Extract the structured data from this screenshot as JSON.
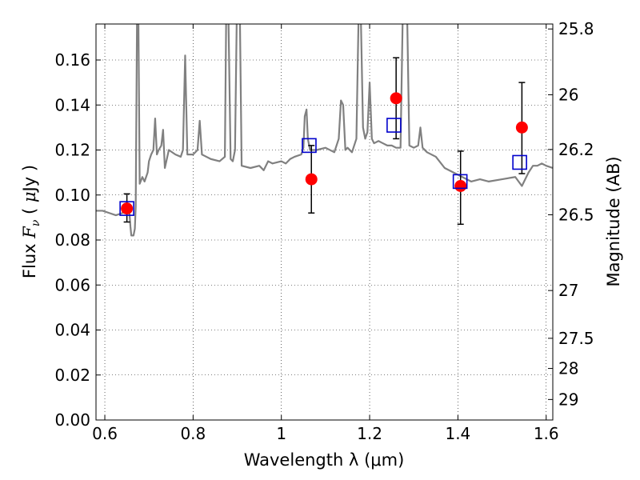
{
  "chart_data": {
    "type": "scatter",
    "title": "",
    "xlabel": "Wavelength  λ (μm)",
    "ylabel": "Flux  F_ν  ( μJy )",
    "ylabel_parts": {
      "prefix": "Flux ",
      "symbol": "F",
      "subscript": "ν",
      "mid": " ( ",
      "mu": "μ",
      "suffix": "Jy )"
    },
    "y2label": "Magnitude (AB)",
    "xlim": [
      0.58,
      1.615
    ],
    "ylim": [
      0.0,
      0.176
    ],
    "grid": true,
    "x_ticks": [
      0.6,
      0.8,
      1.0,
      1.2,
      1.4,
      1.6
    ],
    "x_tick_labels": [
      "0.6",
      "0.8",
      "1",
      "1.2",
      "1.4",
      "1.6"
    ],
    "y_ticks": [
      0.0,
      0.02,
      0.04,
      0.06,
      0.08,
      0.1,
      0.12,
      0.14,
      0.16
    ],
    "y_tick_labels": [
      "0.00",
      "0.02",
      "0.04",
      "0.06",
      "0.08",
      "0.10",
      "0.12",
      "0.14",
      "0.16"
    ],
    "y2_ticks": [
      {
        "label": "25.8",
        "mag": 25.8
      },
      {
        "label": "26",
        "mag": 26.0
      },
      {
        "label": "26.2",
        "mag": 26.2
      },
      {
        "label": "26.5",
        "mag": 26.5
      },
      {
        "label": "27",
        "mag": 27.0
      },
      {
        "label": "27.5",
        "mag": 27.5
      },
      {
        "label": "28",
        "mag": 28.0
      },
      {
        "label": "29",
        "mag": 29.0
      }
    ],
    "series": [
      {
        "kind": "line",
        "color": "#808080",
        "points": [
          [
            0.58,
            0.093
          ],
          [
            0.595,
            0.093
          ],
          [
            0.61,
            0.092
          ],
          [
            0.625,
            0.091
          ],
          [
            0.64,
            0.092
          ],
          [
            0.65,
            0.094
          ],
          [
            0.655,
            0.094
          ],
          [
            0.658,
            0.086
          ],
          [
            0.66,
            0.082
          ],
          [
            0.665,
            0.082
          ],
          [
            0.668,
            0.085
          ],
          [
            0.67,
            0.095
          ],
          [
            0.673,
            0.18
          ],
          [
            0.676,
            0.18
          ],
          [
            0.679,
            0.105
          ],
          [
            0.685,
            0.108
          ],
          [
            0.69,
            0.106
          ],
          [
            0.697,
            0.11
          ],
          [
            0.7,
            0.115
          ],
          [
            0.705,
            0.118
          ],
          [
            0.71,
            0.12
          ],
          [
            0.714,
            0.134
          ],
          [
            0.718,
            0.118
          ],
          [
            0.722,
            0.12
          ],
          [
            0.728,
            0.122
          ],
          [
            0.732,
            0.129
          ],
          [
            0.736,
            0.112
          ],
          [
            0.745,
            0.12
          ],
          [
            0.76,
            0.118
          ],
          [
            0.772,
            0.117
          ],
          [
            0.777,
            0.12
          ],
          [
            0.782,
            0.162
          ],
          [
            0.787,
            0.118
          ],
          [
            0.8,
            0.118
          ],
          [
            0.81,
            0.12
          ],
          [
            0.815,
            0.133
          ],
          [
            0.82,
            0.118
          ],
          [
            0.84,
            0.116
          ],
          [
            0.86,
            0.115
          ],
          [
            0.872,
            0.117
          ],
          [
            0.875,
            0.18
          ],
          [
            0.88,
            0.18
          ],
          [
            0.885,
            0.116
          ],
          [
            0.89,
            0.115
          ],
          [
            0.895,
            0.12
          ],
          [
            0.899,
            0.18
          ],
          [
            0.906,
            0.18
          ],
          [
            0.91,
            0.113
          ],
          [
            0.93,
            0.112
          ],
          [
            0.95,
            0.113
          ],
          [
            0.96,
            0.111
          ],
          [
            0.97,
            0.115
          ],
          [
            0.98,
            0.114
          ],
          [
            1.0,
            0.115
          ],
          [
            1.01,
            0.114
          ],
          [
            1.02,
            0.116
          ],
          [
            1.03,
            0.117
          ],
          [
            1.045,
            0.118
          ],
          [
            1.05,
            0.121
          ],
          [
            1.053,
            0.135
          ],
          [
            1.057,
            0.138
          ],
          [
            1.06,
            0.125
          ],
          [
            1.065,
            0.12
          ],
          [
            1.08,
            0.12
          ],
          [
            1.1,
            0.121
          ],
          [
            1.12,
            0.119
          ],
          [
            1.13,
            0.125
          ],
          [
            1.135,
            0.142
          ],
          [
            1.14,
            0.14
          ],
          [
            1.145,
            0.12
          ],
          [
            1.15,
            0.121
          ],
          [
            1.16,
            0.119
          ],
          [
            1.17,
            0.125
          ],
          [
            1.175,
            0.18
          ],
          [
            1.18,
            0.18
          ],
          [
            1.185,
            0.13
          ],
          [
            1.19,
            0.125
          ],
          [
            1.195,
            0.128
          ],
          [
            1.2,
            0.15
          ],
          [
            1.205,
            0.125
          ],
          [
            1.21,
            0.123
          ],
          [
            1.22,
            0.124
          ],
          [
            1.23,
            0.123
          ],
          [
            1.24,
            0.122
          ],
          [
            1.25,
            0.122
          ],
          [
            1.26,
            0.121
          ],
          [
            1.27,
            0.121
          ],
          [
            1.275,
            0.18
          ],
          [
            1.285,
            0.18
          ],
          [
            1.29,
            0.122
          ],
          [
            1.3,
            0.121
          ],
          [
            1.31,
            0.122
          ],
          [
            1.315,
            0.13
          ],
          [
            1.32,
            0.121
          ],
          [
            1.33,
            0.119
          ],
          [
            1.35,
            0.117
          ],
          [
            1.37,
            0.112
          ],
          [
            1.39,
            0.11
          ],
          [
            1.41,
            0.108
          ],
          [
            1.43,
            0.106
          ],
          [
            1.45,
            0.107
          ],
          [
            1.47,
            0.106
          ],
          [
            1.5,
            0.107
          ],
          [
            1.53,
            0.108
          ],
          [
            1.545,
            0.104
          ],
          [
            1.55,
            0.106
          ],
          [
            1.56,
            0.11
          ],
          [
            1.57,
            0.113
          ],
          [
            1.58,
            0.113
          ],
          [
            1.59,
            0.114
          ],
          [
            1.6,
            0.113
          ],
          [
            1.615,
            0.112
          ]
        ]
      },
      {
        "kind": "errorbar",
        "color": "#ff0000",
        "points": [
          {
            "x": 0.65,
            "y": 0.094,
            "yerr_low": 0.088,
            "yerr_high": 0.1005
          },
          {
            "x": 1.068,
            "y": 0.107,
            "yerr_low": 0.092,
            "yerr_high": 0.122
          },
          {
            "x": 1.26,
            "y": 0.143,
            "yerr_low": 0.125,
            "yerr_high": 0.161
          },
          {
            "x": 1.406,
            "y": 0.104,
            "yerr_low": 0.087,
            "yerr_high": 0.1195
          },
          {
            "x": 1.545,
            "y": 0.13,
            "yerr_low": 0.1095,
            "yerr_high": 0.15
          }
        ]
      },
      {
        "kind": "square",
        "color": "#0000cc",
        "points": [
          {
            "x": 0.65,
            "y": 0.094
          },
          {
            "x": 1.063,
            "y": 0.122
          },
          {
            "x": 1.255,
            "y": 0.131
          },
          {
            "x": 1.405,
            "y": 0.106
          },
          {
            "x": 1.54,
            "y": 0.1145
          }
        ]
      }
    ]
  }
}
